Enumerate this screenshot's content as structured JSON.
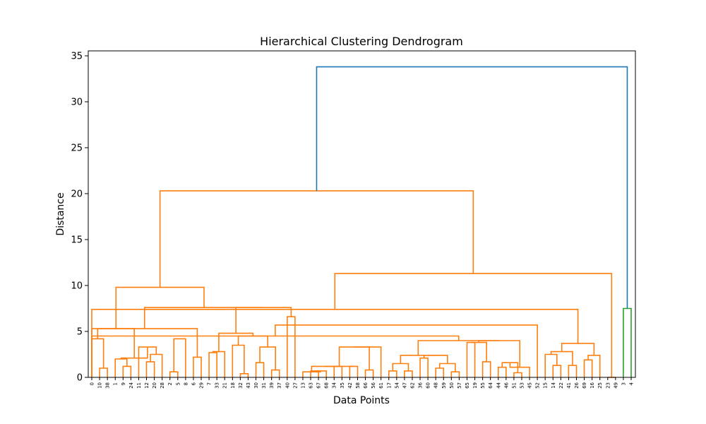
{
  "chart_data": {
    "type": "dendrogram",
    "title": "Hierarchical Clustering Dendrogram",
    "xlabel": "Data Points",
    "ylabel": "Distance",
    "ylim": [
      0,
      35.5
    ],
    "yticks": [
      0,
      5,
      10,
      15,
      20,
      25,
      30,
      35
    ],
    "leaf_labels": [
      "0",
      "10",
      "38",
      "1",
      "9",
      "24",
      "11",
      "12",
      "20",
      "28",
      "2",
      "5",
      "8",
      "6",
      "29",
      "7",
      "33",
      "21",
      "18",
      "32",
      "43",
      "30",
      "31",
      "39",
      "37",
      "40",
      "27",
      "13",
      "63",
      "67",
      "68",
      "34",
      "35",
      "42",
      "58",
      "66",
      "56",
      "61",
      "17",
      "54",
      "47",
      "62",
      "36",
      "60",
      "48",
      "59",
      "50",
      "57",
      "65",
      "19",
      "55",
      "64",
      "44",
      "46",
      "51",
      "53",
      "45",
      "52",
      "15",
      "14",
      "22",
      "41",
      "26",
      "69",
      "16",
      "25",
      "23",
      "49",
      "3",
      "4"
    ],
    "colors": {
      "orange": "#ff7f0e",
      "green": "#2ca02c",
      "blue": "#1f77b4"
    },
    "merges": [
      {
        "l": 1,
        "r": 2,
        "h": 1.0,
        "c": "orange"
      },
      {
        "l": 0,
        "r": "1|2",
        "h": 4.2,
        "c": "orange"
      },
      {
        "l": 4,
        "r": 5,
        "h": 1.2,
        "c": "orange"
      },
      {
        "l": 3,
        "r": "4|5",
        "h": 2.0,
        "c": "orange"
      },
      {
        "l": 7,
        "r": 8,
        "h": 1.7,
        "c": "orange"
      },
      {
        "l": "7|8",
        "r": 9,
        "h": 2.5,
        "c": "orange"
      },
      {
        "l": 6,
        "r": "7|9",
        "h": 3.3,
        "c": "orange"
      },
      {
        "l": "3|5",
        "r": "6|9",
        "h": 2.1,
        "c": "orange"
      },
      {
        "l": "0|2",
        "r": "3|9",
        "h": 5.3,
        "c": "orange"
      },
      {
        "l": 10,
        "r": 11,
        "h": 0.6,
        "c": "orange"
      },
      {
        "l": 12,
        "r": "10|11",
        "h": 4.2,
        "c": "orange"
      },
      {
        "l": 13,
        "r": 14,
        "h": 2.2,
        "c": "orange"
      },
      {
        "l": "10|12",
        "r": "13|14",
        "h": 5.3,
        "c": "orange"
      },
      {
        "l": 15,
        "r": 16,
        "h": 2.7,
        "c": "orange"
      },
      {
        "l": "15|16",
        "r": 17,
        "h": 2.8,
        "c": "orange"
      },
      {
        "l": 19,
        "r": 20,
        "h": 0.4,
        "c": "orange"
      },
      {
        "l": 18,
        "r": "19|20",
        "h": 3.5,
        "c": "orange"
      },
      {
        "l": 21,
        "r": 22,
        "h": 1.6,
        "c": "orange"
      },
      {
        "l": 23,
        "r": 24,
        "h": 0.8,
        "c": "orange"
      },
      {
        "l": "21|22",
        "r": "23|24",
        "h": 3.3,
        "c": "orange"
      },
      {
        "l": "18|20",
        "r": "21|24",
        "h": 4.5,
        "c": "orange"
      },
      {
        "l": "15|17",
        "r": "18|24",
        "h": 4.8,
        "c": "orange"
      },
      {
        "l": 25,
        "r": 26,
        "h": 6.6,
        "c": "orange"
      },
      {
        "l": "15|24",
        "r": "25|26",
        "h": 7.6,
        "c": "orange"
      },
      {
        "l": "10|14",
        "r": "15|26",
        "h": 7.6,
        "c": "orange"
      },
      {
        "l": "0|9",
        "r": "10|26",
        "h": 9.8,
        "c": "orange"
      },
      {
        "l": 28,
        "r": 29,
        "h": 0.7,
        "c": "orange"
      },
      {
        "l": "28|29",
        "r": 30,
        "h": 0.7,
        "c": "orange"
      },
      {
        "l": 27,
        "r": "28|30",
        "h": 0.6,
        "c": "orange"
      },
      {
        "l": 31,
        "r": 32,
        "h": 1.2,
        "c": "orange"
      },
      {
        "l": "27|30",
        "r": "31|32",
        "h": 1.2,
        "c": "orange"
      },
      {
        "l": 33,
        "r": 34,
        "h": 1.2,
        "c": "orange"
      },
      {
        "l": "27|32",
        "r": "33|34",
        "h": 1.2,
        "c": "orange"
      },
      {
        "l": 35,
        "r": 36,
        "h": 0.8,
        "c": "orange"
      },
      {
        "l": "27|34",
        "r": "35|36",
        "h": 3.3,
        "c": "orange"
      },
      {
        "l": 37,
        "r": "27|36",
        "h": 3.3,
        "c": "orange"
      },
      {
        "l": 38,
        "r": 39,
        "h": 0.7,
        "c": "orange"
      },
      {
        "l": 40,
        "r": 41,
        "h": 0.7,
        "c": "orange"
      },
      {
        "l": "38|39",
        "r": "40|41",
        "h": 1.5,
        "c": "orange"
      },
      {
        "l": 42,
        "r": 43,
        "h": 2.1,
        "c": "orange"
      },
      {
        "l": 44,
        "r": 45,
        "h": 1.0,
        "c": "orange"
      },
      {
        "l": 46,
        "r": 47,
        "h": 0.6,
        "c": "orange"
      },
      {
        "l": "44|45",
        "r": "46|47",
        "h": 1.5,
        "c": "orange"
      },
      {
        "l": "42|43",
        "r": "44|47",
        "h": 2.4,
        "c": "orange"
      },
      {
        "l": "38|41",
        "r": "42|47",
        "h": 2.4,
        "c": "orange"
      },
      {
        "l": 48,
        "r": 49,
        "h": 3.8,
        "c": "orange"
      },
      {
        "l": 50,
        "r": 51,
        "h": 1.7,
        "c": "orange"
      },
      {
        "l": "48|49",
        "r": "50|51",
        "h": 3.8,
        "c": "orange"
      },
      {
        "l": 52,
        "r": 53,
        "h": 1.1,
        "c": "orange"
      },
      {
        "l": 54,
        "r": 55,
        "h": 0.5,
        "c": "orange"
      },
      {
        "l": "52|53",
        "r": "54|55",
        "h": 1.6,
        "c": "orange"
      },
      {
        "l": "52|55",
        "r": 56,
        "h": 1.1,
        "c": "orange"
      },
      {
        "l": "48|51",
        "r": "52|56",
        "h": 4.0,
        "c": "orange"
      },
      {
        "l": "38|47",
        "r": "48|56",
        "h": 4.0,
        "c": "orange"
      },
      {
        "l": "27|37",
        "r": "38|56",
        "h": 4.5,
        "c": "orange"
      },
      {
        "l": 57,
        "r": "27|56",
        "h": 5.7,
        "c": "orange"
      },
      {
        "l": 59,
        "r": 60,
        "h": 1.3,
        "c": "orange"
      },
      {
        "l": 58,
        "r": "59|60",
        "h": 2.5,
        "c": "orange"
      },
      {
        "l": 61,
        "r": 62,
        "h": 1.3,
        "c": "orange"
      },
      {
        "l": "58|60",
        "r": "61|62",
        "h": 2.8,
        "c": "orange"
      },
      {
        "l": 63,
        "r": 64,
        "h": 1.9,
        "c": "orange"
      },
      {
        "l": "63|64",
        "r": 65,
        "h": 2.4,
        "c": "orange"
      },
      {
        "l": "58|62",
        "r": "63|65",
        "h": 3.7,
        "c": "orange"
      },
      {
        "l": "27|57",
        "r": "58|65",
        "h": 7.4,
        "c": "orange"
      },
      {
        "l": 66,
        "r": 67,
        "h": 0.0,
        "c": "orange"
      },
      {
        "l": "27|65",
        "r": "66|67",
        "h": 11.3,
        "c": "orange"
      },
      {
        "l": "0|26",
        "r": "27|67",
        "h": 20.3,
        "c": "orange"
      },
      {
        "l": 68,
        "r": 69,
        "h": 7.5,
        "c": "green"
      },
      {
        "l": "0|67",
        "r": "68|69",
        "h": 33.8,
        "c": "blue"
      }
    ]
  }
}
